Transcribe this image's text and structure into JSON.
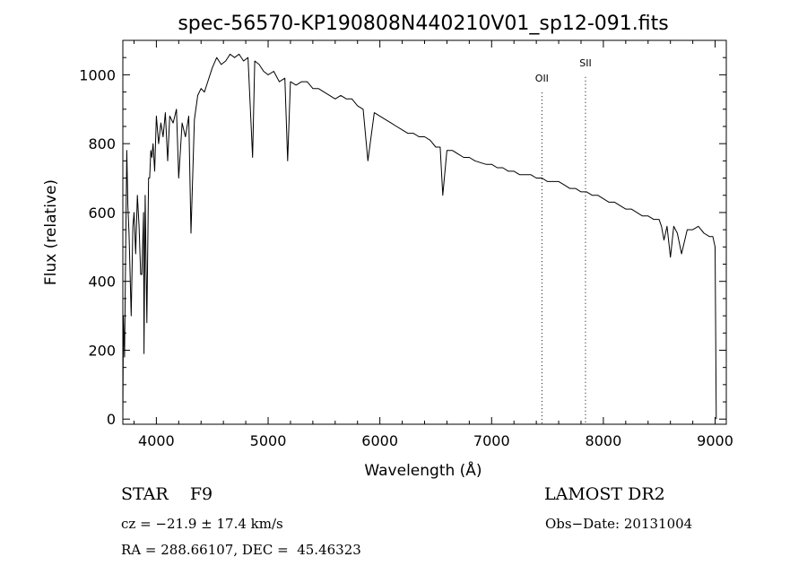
{
  "chart_data": {
    "type": "line",
    "title": "spec-56570-KP190808N440210V01_sp12-091.fits",
    "xlabel": "Wavelength (Å)",
    "ylabel": "Flux (relative)",
    "xlim": [
      3700,
      9100
    ],
    "ylim": [
      -15,
      1100
    ],
    "xticks": [
      4000,
      5000,
      6000,
      7000,
      8000,
      9000
    ],
    "yticks": [
      0,
      200,
      400,
      600,
      800,
      1000
    ],
    "grid": false,
    "series": [
      {
        "x": [
          3700,
          3705,
          3715,
          3725,
          3735,
          3745,
          3755,
          3765,
          3775,
          3790,
          3800,
          3815,
          3830,
          3845,
          3860,
          3870,
          3885,
          3889,
          3900,
          3915,
          3930,
          3940,
          3950,
          3960,
          3970,
          3985,
          4000,
          4020,
          4040,
          4060,
          4080,
          4101,
          4120,
          4150,
          4180,
          4200,
          4230,
          4260,
          4290,
          4310,
          4340,
          4370,
          4400,
          4430,
          4460,
          4500,
          4540,
          4580,
          4620,
          4660,
          4700,
          4740,
          4780,
          4820,
          4861,
          4880,
          4920,
          4960,
          5000,
          5050,
          5100,
          5150,
          5175,
          5200,
          5250,
          5300,
          5350,
          5400,
          5450,
          5500,
          5550,
          5600,
          5650,
          5700,
          5750,
          5800,
          5850,
          5893,
          5950,
          6000,
          6050,
          6100,
          6150,
          6200,
          6250,
          6300,
          6350,
          6400,
          6450,
          6500,
          6540,
          6563,
          6600,
          6650,
          6700,
          6750,
          6800,
          6850,
          6900,
          6950,
          7000,
          7050,
          7100,
          7150,
          7200,
          7250,
          7300,
          7350,
          7400,
          7450,
          7500,
          7550,
          7600,
          7650,
          7700,
          7750,
          7800,
          7850,
          7900,
          7950,
          8000,
          8050,
          8100,
          8150,
          8200,
          8250,
          8300,
          8350,
          8400,
          8450,
          8498,
          8520,
          8542,
          8570,
          8600,
          8630,
          8662,
          8700,
          8750,
          8800,
          8850,
          8900,
          8950,
          8980,
          9000,
          9010
        ],
        "values": [
          0,
          300,
          180,
          480,
          780,
          620,
          540,
          420,
          300,
          560,
          600,
          480,
          650,
          560,
          420,
          420,
          600,
          190,
          650,
          280,
          700,
          700,
          780,
          760,
          800,
          720,
          880,
          800,
          860,
          820,
          890,
          750,
          880,
          860,
          900,
          700,
          860,
          820,
          880,
          540,
          870,
          940,
          960,
          950,
          980,
          1020,
          1050,
          1030,
          1040,
          1060,
          1050,
          1060,
          1040,
          1050,
          760,
          1040,
          1030,
          1010,
          1000,
          1010,
          980,
          990,
          750,
          980,
          970,
          980,
          980,
          960,
          960,
          950,
          940,
          930,
          940,
          930,
          930,
          910,
          900,
          750,
          890,
          880,
          870,
          860,
          850,
          840,
          830,
          830,
          820,
          820,
          810,
          790,
          790,
          650,
          780,
          780,
          770,
          760,
          760,
          750,
          745,
          740,
          740,
          730,
          730,
          720,
          720,
          710,
          710,
          710,
          700,
          700,
          690,
          690,
          690,
          680,
          670,
          670,
          660,
          660,
          650,
          650,
          640,
          630,
          630,
          620,
          610,
          610,
          600,
          590,
          590,
          580,
          580,
          560,
          520,
          560,
          470,
          560,
          540,
          480,
          550,
          550,
          560,
          540,
          530,
          530,
          500,
          0
        ]
      }
    ],
    "annotations": [
      {
        "label": "OII",
        "x": 7450,
        "label_y": 980
      },
      {
        "label": "SII",
        "x": 7840,
        "label_y": 1025
      }
    ]
  },
  "info": {
    "class": "STAR    F9",
    "survey": "LAMOST DR2",
    "cz": "cz = −21.9 ± 17.4 km/s",
    "obs_date": "Obs−Date: 20131004",
    "radec": "RA = 288.66107, DEC =  45.46323"
  }
}
